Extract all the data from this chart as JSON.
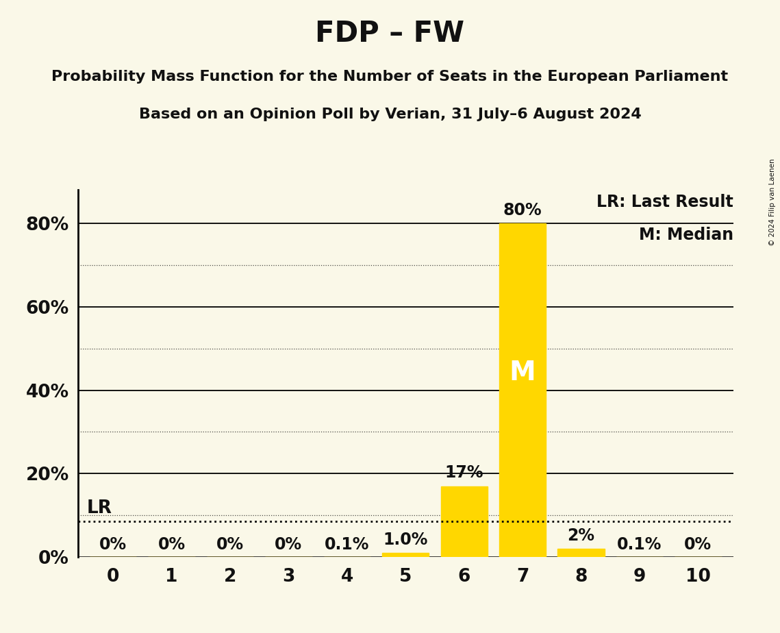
{
  "title": "FDP – FW",
  "subtitle1": "Probability Mass Function for the Number of Seats in the European Parliament",
  "subtitle2": "Based on an Opinion Poll by Verian, 31 July–6 August 2024",
  "copyright": "© 2024 Filip van Laenen",
  "x_values": [
    0,
    1,
    2,
    3,
    4,
    5,
    6,
    7,
    8,
    9,
    10
  ],
  "probabilities": [
    0.0,
    0.0,
    0.0,
    0.0,
    0.001,
    0.01,
    0.17,
    0.8,
    0.02,
    0.001,
    0.0
  ],
  "bar_labels": [
    "0%",
    "0%",
    "0%",
    "0%",
    "0.1%",
    "1.0%",
    "17%",
    "80%",
    "2%",
    "0.1%",
    "0%"
  ],
  "bar_color": "#FFD700",
  "background_color": "#FAF8E8",
  "text_color": "#111111",
  "ylim": [
    0,
    0.88
  ],
  "yticks": [
    0.0,
    0.2,
    0.4,
    0.6,
    0.8
  ],
  "ytick_labels": [
    "0%",
    "20%",
    "40%",
    "60%",
    "80%"
  ],
  "lr_value": 0.085,
  "median_seat": 7,
  "legend_lr": "LR: Last Result",
  "legend_m": "M: Median",
  "title_fontsize": 30,
  "subtitle_fontsize": 16,
  "label_fontsize": 16,
  "ytick_fontsize": 18,
  "xtick_fontsize": 18,
  "bar_label_fontsize": 16
}
